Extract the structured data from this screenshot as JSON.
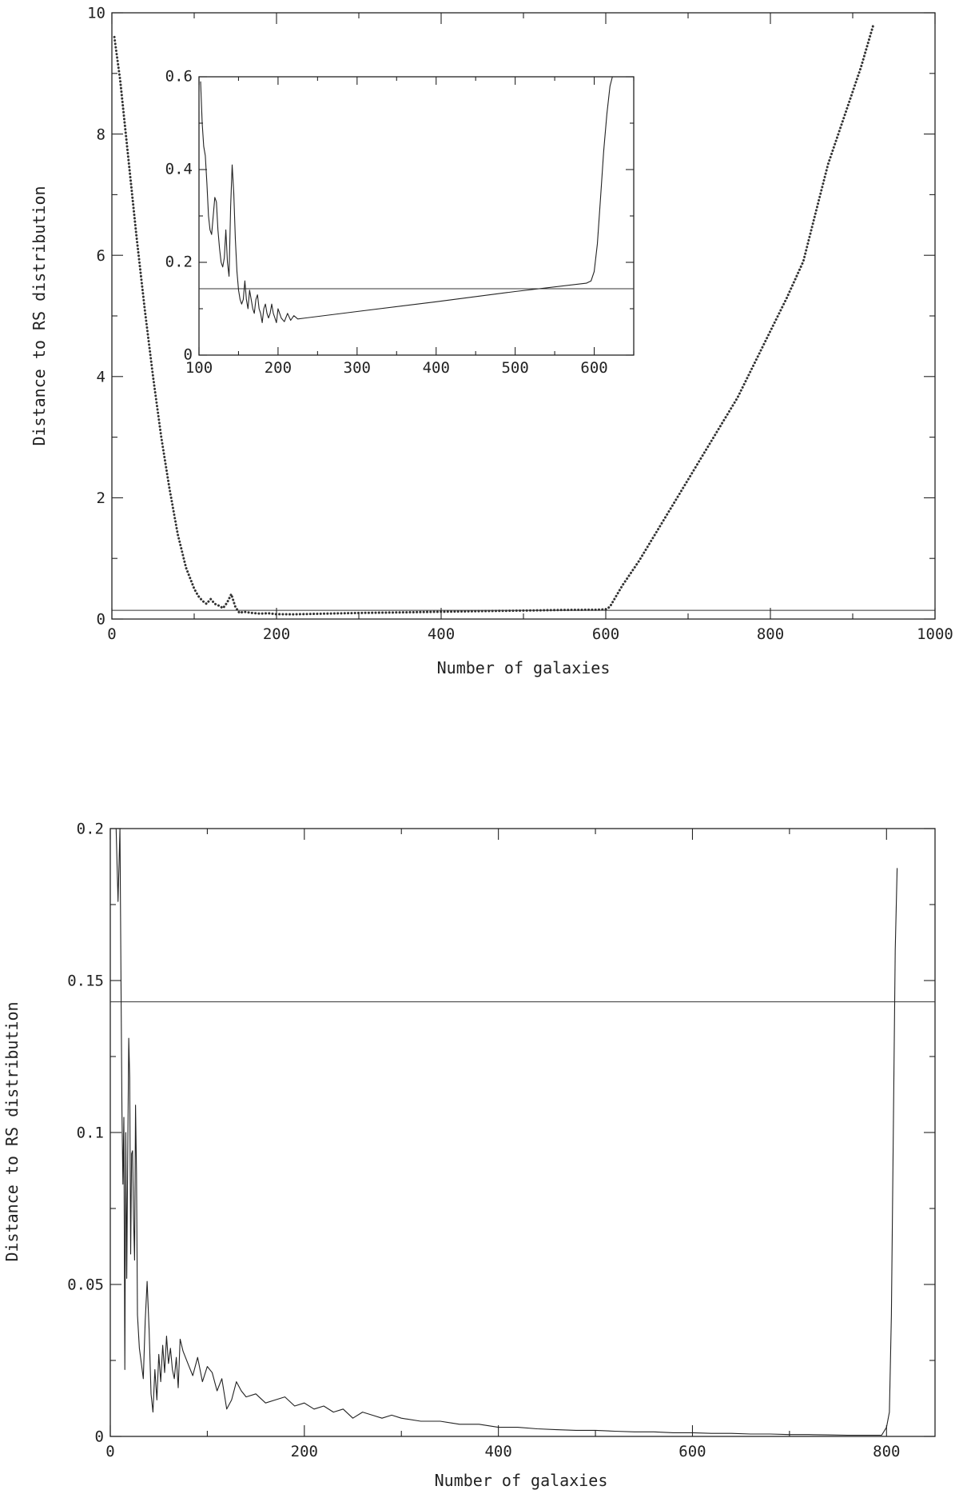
{
  "chart_data": [
    {
      "type": "scatter",
      "title": "",
      "xlabel": "Number of galaxies",
      "ylabel": "Distance to RS distribution",
      "xlim": [
        0,
        1000
      ],
      "ylim": [
        0,
        10
      ],
      "xticks": [
        "0",
        "200",
        "400",
        "600",
        "800",
        "1000"
      ],
      "yticks": [
        "0",
        "2",
        "4",
        "6",
        "8",
        "10"
      ],
      "threshold": 0.143,
      "grid": false,
      "series": [
        {
          "x": [
            3,
            10,
            20,
            30,
            40,
            50,
            60,
            70,
            80,
            90,
            100,
            105,
            110,
            115,
            120,
            125,
            130,
            135,
            140,
            145,
            150,
            155,
            160,
            170,
            180,
            190,
            200,
            220,
            260,
            300,
            350,
            400,
            450,
            500,
            550,
            590,
            600,
            605,
            620,
            640,
            660,
            680,
            700,
            720,
            740,
            760,
            780,
            800,
            820,
            840,
            855,
            870,
            890,
            910,
            925
          ],
          "y": [
            9.6,
            8.9,
            7.6,
            6.3,
            5.1,
            4.0,
            3.0,
            2.15,
            1.4,
            0.85,
            0.5,
            0.38,
            0.3,
            0.25,
            0.33,
            0.25,
            0.22,
            0.18,
            0.27,
            0.41,
            0.2,
            0.1,
            0.12,
            0.1,
            0.09,
            0.095,
            0.08,
            0.078,
            0.09,
            0.1,
            0.11,
            0.12,
            0.13,
            0.14,
            0.15,
            0.155,
            0.16,
            0.2,
            0.55,
            0.95,
            1.4,
            1.85,
            2.3,
            2.75,
            3.2,
            3.65,
            4.2,
            4.75,
            5.3,
            5.9,
            6.7,
            7.5,
            8.3,
            9.1,
            9.8
          ]
        }
      ]
    },
    {
      "type": "line",
      "inset": true,
      "title": "",
      "xlabel": "",
      "ylabel": "",
      "xlim": [
        100,
        650
      ],
      "ylim": [
        0,
        0.6
      ],
      "xticks": [
        "100",
        "200",
        "300",
        "400",
        "500",
        "600"
      ],
      "yticks": [
        "0",
        "0.2",
        "0.4",
        "0.6"
      ],
      "threshold": 0.143,
      "series": [
        {
          "x": [
            102,
            104,
            106,
            108,
            110,
            112,
            114,
            116,
            118,
            120,
            122,
            124,
            126,
            128,
            130,
            132,
            134,
            136,
            138,
            140,
            142,
            144,
            146,
            148,
            150,
            152,
            154,
            156,
            158,
            160,
            162,
            164,
            166,
            168,
            170,
            172,
            174,
            176,
            178,
            180,
            182,
            184,
            186,
            188,
            190,
            192,
            194,
            196,
            198,
            200,
            204,
            208,
            212,
            216,
            220,
            225,
            300,
            400,
            500,
            590,
            596,
            600,
            604,
            608,
            612,
            616,
            620,
            623
          ],
          "y": [
            0.59,
            0.5,
            0.45,
            0.43,
            0.37,
            0.3,
            0.27,
            0.26,
            0.3,
            0.34,
            0.33,
            0.27,
            0.23,
            0.2,
            0.19,
            0.21,
            0.27,
            0.2,
            0.17,
            0.32,
            0.41,
            0.35,
            0.25,
            0.18,
            0.14,
            0.12,
            0.11,
            0.12,
            0.16,
            0.12,
            0.1,
            0.14,
            0.12,
            0.1,
            0.09,
            0.12,
            0.13,
            0.1,
            0.09,
            0.07,
            0.1,
            0.11,
            0.09,
            0.08,
            0.09,
            0.11,
            0.09,
            0.08,
            0.07,
            0.1,
            0.08,
            0.072,
            0.09,
            0.075,
            0.085,
            0.078,
            0.094,
            0.115,
            0.137,
            0.155,
            0.16,
            0.18,
            0.24,
            0.34,
            0.44,
            0.52,
            0.58,
            0.6
          ]
        }
      ]
    },
    {
      "type": "line",
      "title": "",
      "xlabel": "Number of galaxies",
      "ylabel": "Distance to RS distribution",
      "xlim": [
        0,
        850
      ],
      "ylim": [
        0,
        0.2
      ],
      "xticks": [
        "0",
        "200",
        "400",
        "600",
        "800"
      ],
      "yticks": [
        "0",
        "0.05",
        "0.1",
        "0.15",
        "0.2"
      ],
      "threshold": 0.143,
      "grid": false,
      "series": [
        {
          "x": [
            6,
            8,
            10,
            11,
            12,
            13,
            14,
            15,
            16,
            17,
            18,
            19,
            20,
            21,
            22,
            23,
            24,
            25,
            26,
            27,
            28,
            30,
            32,
            34,
            36,
            38,
            40,
            42,
            44,
            46,
            48,
            50,
            52,
            54,
            56,
            58,
            60,
            62,
            64,
            66,
            68,
            70,
            72,
            75,
            80,
            85,
            90,
            95,
            100,
            105,
            110,
            115,
            120,
            125,
            130,
            135,
            140,
            150,
            160,
            170,
            180,
            190,
            200,
            210,
            220,
            230,
            240,
            250,
            260,
            270,
            280,
            290,
            300,
            320,
            340,
            360,
            380,
            400,
            420,
            440,
            460,
            480,
            500,
            520,
            540,
            560,
            580,
            600,
            620,
            640,
            660,
            680,
            700,
            720,
            740,
            760,
            780,
            795,
            800,
            803,
            805,
            807,
            809,
            811
          ],
          "y": [
            0.2,
            0.176,
            0.2,
            0.15,
            0.107,
            0.083,
            0.105,
            0.022,
            0.1,
            0.052,
            0.095,
            0.131,
            0.118,
            0.06,
            0.093,
            0.094,
            0.072,
            0.058,
            0.109,
            0.087,
            0.04,
            0.029,
            0.024,
            0.019,
            0.038,
            0.051,
            0.035,
            0.014,
            0.008,
            0.022,
            0.012,
            0.027,
            0.018,
            0.03,
            0.021,
            0.033,
            0.024,
            0.029,
            0.022,
            0.019,
            0.026,
            0.016,
            0.032,
            0.028,
            0.024,
            0.02,
            0.026,
            0.018,
            0.023,
            0.021,
            0.015,
            0.019,
            0.009,
            0.012,
            0.018,
            0.015,
            0.013,
            0.014,
            0.011,
            0.012,
            0.013,
            0.01,
            0.011,
            0.009,
            0.01,
            0.008,
            0.009,
            0.006,
            0.008,
            0.007,
            0.006,
            0.007,
            0.006,
            0.005,
            0.005,
            0.004,
            0.004,
            0.003,
            0.003,
            0.0025,
            0.0022,
            0.002,
            0.002,
            0.0017,
            0.0015,
            0.0015,
            0.0012,
            0.0012,
            0.001,
            0.001,
            0.0008,
            0.0008,
            0.0006,
            0.0006,
            0.0005,
            0.0004,
            0.0004,
            0.0004,
            0.003,
            0.008,
            0.04,
            0.1,
            0.16,
            0.187
          ]
        }
      ]
    }
  ]
}
